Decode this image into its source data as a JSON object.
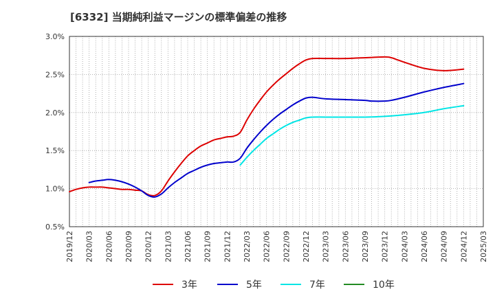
{
  "chart_data": {
    "type": "line",
    "title": "[6332]  当期純利益マージンの標準偏差の推移",
    "xlabel": "",
    "ylabel": "",
    "ylim": [
      0.005,
      0.03
    ],
    "yticks": [
      0.005,
      0.01,
      0.015,
      0.02,
      0.025,
      0.03
    ],
    "ytick_labels": [
      "0.5%",
      "1.0%",
      "1.5%",
      "2.0%",
      "2.5%",
      "3.0%"
    ],
    "xlim": [
      "2019-12",
      "2025-03"
    ],
    "xtick_labels": [
      "2019/12",
      "2020/03",
      "2020/06",
      "2020/09",
      "2020/12",
      "2021/03",
      "2021/06",
      "2021/09",
      "2021/12",
      "2022/03",
      "2022/06",
      "2022/09",
      "2022/12",
      "2023/03",
      "2023/06",
      "2023/09",
      "2023/12",
      "2024/03",
      "2024/06",
      "2024/09",
      "2024/12",
      "2025/03"
    ],
    "grid": true,
    "legend_position": "bottom",
    "series": [
      {
        "name": "3年",
        "color": "#dd0000",
        "points": [
          [
            "2019-12",
            0.0096
          ],
          [
            "2020-01",
            0.0099
          ],
          [
            "2020-02",
            0.0101
          ],
          [
            "2020-03",
            0.0102
          ],
          [
            "2020-04",
            0.0102
          ],
          [
            "2020-05",
            0.0102
          ],
          [
            "2020-06",
            0.0101
          ],
          [
            "2020-07",
            0.01
          ],
          [
            "2020-08",
            0.0099
          ],
          [
            "2020-09",
            0.0099
          ],
          [
            "2020-10",
            0.0098
          ],
          [
            "2020-11",
            0.0097
          ],
          [
            "2020-12",
            0.0092
          ],
          [
            "2021-01",
            0.0091
          ],
          [
            "2021-02",
            0.0097
          ],
          [
            "2021-03",
            0.011
          ],
          [
            "2021-04",
            0.0122
          ],
          [
            "2021-05",
            0.0133
          ],
          [
            "2021-06",
            0.0143
          ],
          [
            "2021-07",
            0.015
          ],
          [
            "2021-08",
            0.0156
          ],
          [
            "2021-09",
            0.016
          ],
          [
            "2021-10",
            0.0164
          ],
          [
            "2021-11",
            0.0166
          ],
          [
            "2021-12",
            0.0168
          ],
          [
            "2022-01",
            0.0169
          ],
          [
            "2022-02",
            0.0174
          ],
          [
            "2022-03",
            0.019
          ],
          [
            "2022-04",
            0.0204
          ],
          [
            "2022-05",
            0.0216
          ],
          [
            "2022-06",
            0.0227
          ],
          [
            "2022-07",
            0.0236
          ],
          [
            "2022-08",
            0.0244
          ],
          [
            "2022-09",
            0.0251
          ],
          [
            "2022-10",
            0.0258
          ],
          [
            "2022-11",
            0.0264
          ],
          [
            "2022-12",
            0.0269
          ],
          [
            "2023-01",
            0.0271
          ],
          [
            "2023-03",
            0.0271
          ],
          [
            "2023-06",
            0.0271
          ],
          [
            "2023-09",
            0.0272
          ],
          [
            "2023-12",
            0.0273
          ],
          [
            "2024-01",
            0.0272
          ],
          [
            "2024-02",
            0.0269
          ],
          [
            "2024-03",
            0.0266
          ],
          [
            "2024-06",
            0.0258
          ],
          [
            "2024-09",
            0.0255
          ],
          [
            "2024-12",
            0.0257
          ]
        ]
      },
      {
        "name": "5年",
        "color": "#0000cc",
        "points": [
          [
            "2020-03",
            0.0108
          ],
          [
            "2020-04",
            0.011
          ],
          [
            "2020-05",
            0.0111
          ],
          [
            "2020-06",
            0.0112
          ],
          [
            "2020-07",
            0.0111
          ],
          [
            "2020-08",
            0.0109
          ],
          [
            "2020-09",
            0.0106
          ],
          [
            "2020-10",
            0.0102
          ],
          [
            "2020-11",
            0.0097
          ],
          [
            "2020-12",
            0.0091
          ],
          [
            "2021-01",
            0.0089
          ],
          [
            "2021-02",
            0.0093
          ],
          [
            "2021-03",
            0.0101
          ],
          [
            "2021-04",
            0.0108
          ],
          [
            "2021-05",
            0.0114
          ],
          [
            "2021-06",
            0.012
          ],
          [
            "2021-07",
            0.0124
          ],
          [
            "2021-08",
            0.0128
          ],
          [
            "2021-09",
            0.0131
          ],
          [
            "2021-10",
            0.0133
          ],
          [
            "2021-11",
            0.0134
          ],
          [
            "2021-12",
            0.0135
          ],
          [
            "2022-01",
            0.0135
          ],
          [
            "2022-02",
            0.014
          ],
          [
            "2022-03",
            0.0153
          ],
          [
            "2022-04",
            0.0164
          ],
          [
            "2022-05",
            0.0174
          ],
          [
            "2022-06",
            0.0183
          ],
          [
            "2022-07",
            0.0191
          ],
          [
            "2022-08",
            0.0198
          ],
          [
            "2022-09",
            0.0204
          ],
          [
            "2022-10",
            0.021
          ],
          [
            "2022-11",
            0.0215
          ],
          [
            "2022-12",
            0.0219
          ],
          [
            "2023-01",
            0.022
          ],
          [
            "2023-03",
            0.0218
          ],
          [
            "2023-06",
            0.0217
          ],
          [
            "2023-09",
            0.0216
          ],
          [
            "2023-10",
            0.0215
          ],
          [
            "2023-12",
            0.0215
          ],
          [
            "2024-01",
            0.0216
          ],
          [
            "2024-03",
            0.022
          ],
          [
            "2024-06",
            0.0227
          ],
          [
            "2024-09",
            0.0233
          ],
          [
            "2024-12",
            0.0238
          ]
        ]
      },
      {
        "name": "7年",
        "color": "#00e5e5",
        "points": [
          [
            "2022-02",
            0.0131
          ],
          [
            "2022-03",
            0.0141
          ],
          [
            "2022-04",
            0.015
          ],
          [
            "2022-05",
            0.0158
          ],
          [
            "2022-06",
            0.0166
          ],
          [
            "2022-07",
            0.0172
          ],
          [
            "2022-08",
            0.0178
          ],
          [
            "2022-09",
            0.0183
          ],
          [
            "2022-10",
            0.0187
          ],
          [
            "2022-11",
            0.019
          ],
          [
            "2022-12",
            0.0193
          ],
          [
            "2023-01",
            0.0194
          ],
          [
            "2023-03",
            0.0194
          ],
          [
            "2023-06",
            0.0194
          ],
          [
            "2023-09",
            0.0194
          ],
          [
            "2023-12",
            0.0195
          ],
          [
            "2024-03",
            0.0197
          ],
          [
            "2024-06",
            0.02
          ],
          [
            "2024-09",
            0.0205
          ],
          [
            "2024-12",
            0.0209
          ]
        ]
      },
      {
        "name": "10年",
        "color": "#228b22",
        "points": []
      }
    ]
  }
}
